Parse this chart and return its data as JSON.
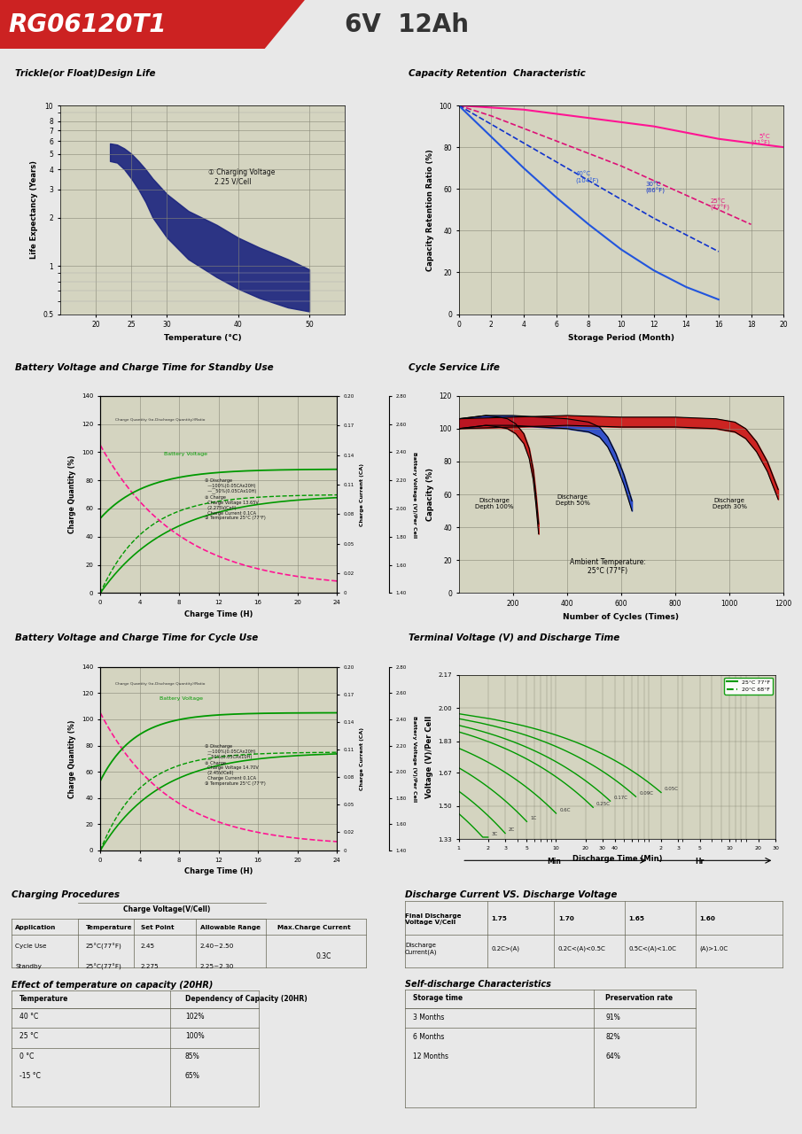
{
  "title_model": "RG06120T1",
  "title_spec": "6V  12Ah",
  "bg_color": "#e8e8e8",
  "panel_bg": "#d8d8c8",
  "plot_bg": "#d4d4c0",
  "header_red": "#cc2222",
  "trickle_title": "Trickle(or Float)Design Life",
  "trickle_xlabel": "Temperature (°C)",
  "trickle_ylabel": "Life Expectancy (Years)",
  "cap_retention_title": "Capacity Retention  Characteristic",
  "cap_retention_xlabel": "Storage Period (Month)",
  "cap_retention_ylabel": "Capacity Retention Ratio (%)",
  "standby_title": "Battery Voltage and Charge Time for Standby Use",
  "standby_xlabel": "Charge Time (H)",
  "standby_ylabel1": "Charge Quantity (%)",
  "standby_ylabel2": "Charge Current (CA)",
  "standby_ylabel3": "Battery Voltage (V)/Per Cell",
  "cycle_life_title": "Cycle Service Life",
  "cycle_life_xlabel": "Number of Cycles (Times)",
  "cycle_life_ylabel": "Capacity (%)",
  "cycle_charge_title": "Battery Voltage and Charge Time for Cycle Use",
  "cycle_charge_xlabel": "Charge Time (H)",
  "terminal_title": "Terminal Voltage (V) and Discharge Time",
  "terminal_xlabel": "Discharge Time (Min)",
  "terminal_ylabel": "Voltage (V)/Per Cell",
  "charging_title": "Charging Procedures",
  "discharge_title": "Discharge Current VS. Discharge Voltage",
  "temp_title": "Effect of temperature on capacity (20HR)",
  "selfdischarge_title": "Self-discharge Characteristics"
}
